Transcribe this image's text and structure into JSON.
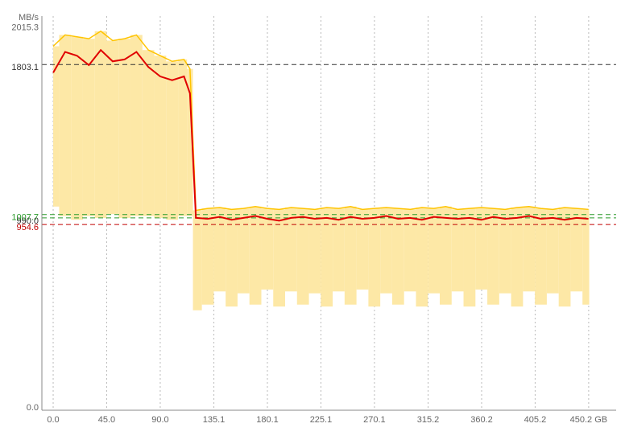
{
  "chart_data": {
    "type": "line",
    "y_axis_label": "MB/s",
    "x": [
      0,
      10,
      20,
      30,
      40,
      50,
      60,
      70,
      80,
      90,
      100,
      110,
      115,
      120,
      130,
      140,
      150,
      160,
      170,
      180,
      190,
      200,
      210,
      220,
      230,
      240,
      250,
      260,
      270,
      280,
      290,
      300,
      310,
      320,
      330,
      340,
      350,
      360,
      370,
      380,
      390,
      400,
      410,
      420,
      430,
      440,
      450
    ],
    "series": [
      {
        "color": "#e00000",
        "values": [
          1760,
          1870,
          1850,
          1800,
          1880,
          1820,
          1830,
          1870,
          1790,
          1740,
          1720,
          1740,
          1650,
          990,
          985,
          995,
          980,
          990,
          1000,
          985,
          975,
          990,
          995,
          985,
          990,
          980,
          995,
          985,
          990,
          1000,
          985,
          990,
          980,
          995,
          990,
          985,
          990,
          980,
          995,
          985,
          990,
          1000,
          985,
          990,
          980,
          990,
          985
        ]
      },
      {
        "color": "#fde8a6",
        "values": [
          1900,
          1960,
          1950,
          1940,
          1980,
          1930,
          1940,
          1960,
          1880,
          1850,
          1820,
          1830,
          1780,
          1030,
          1040,
          1045,
          1035,
          1040,
          1050,
          1040,
          1035,
          1045,
          1040,
          1035,
          1045,
          1040,
          1050,
          1035,
          1040,
          1045,
          1040,
          1035,
          1045,
          1040,
          1050,
          1035,
          1040,
          1045,
          1040,
          1035,
          1045,
          1050,
          1040,
          1035,
          1045,
          1040,
          1035
        ]
      },
      {
        "color": "#fde8a6",
        "values": [
          1050,
          1000,
          980,
          1000,
          990,
          1010,
          990,
          1000,
          1000,
          990,
          980,
          1000,
          1000,
          500,
          530,
          600,
          520,
          590,
          530,
          610,
          520,
          600,
          530,
          590,
          520,
          600,
          530,
          610,
          520,
          590,
          530,
          600,
          520,
          590,
          530,
          600,
          520,
          610,
          530,
          590,
          520,
          600,
          530,
          590,
          520,
          600,
          530
        ]
      }
    ],
    "xlim": [
      -9.5,
      473.3
    ],
    "ylim": [
      -30,
      2060
    ],
    "xticks": [
      {
        "value": 0,
        "label": "0.0"
      },
      {
        "value": 45,
        "label": "45.0"
      },
      {
        "value": 90,
        "label": "90.0"
      },
      135.1,
      180.1,
      225.1,
      270.1,
      315.2,
      360.2,
      405.2,
      {
        "value": 450.2,
        "label": "450.2 GB"
      }
    ],
    "yticks": [
      {
        "value": 0,
        "label": "0.0"
      },
      954.6,
      {
        "value": 990,
        "label": "990.0"
      },
      1007.7,
      1803.1,
      2015.3
    ],
    "ytick_colors": [
      "#666666",
      "#c00000",
      "#333333",
      "#2a9a2a",
      "#333333",
      "#666666"
    ],
    "reference_line_colors": [
      null,
      "#c00000",
      "#2a9a2a",
      "#2a9a2a",
      "#333333",
      null
    ],
    "grid": true
  }
}
